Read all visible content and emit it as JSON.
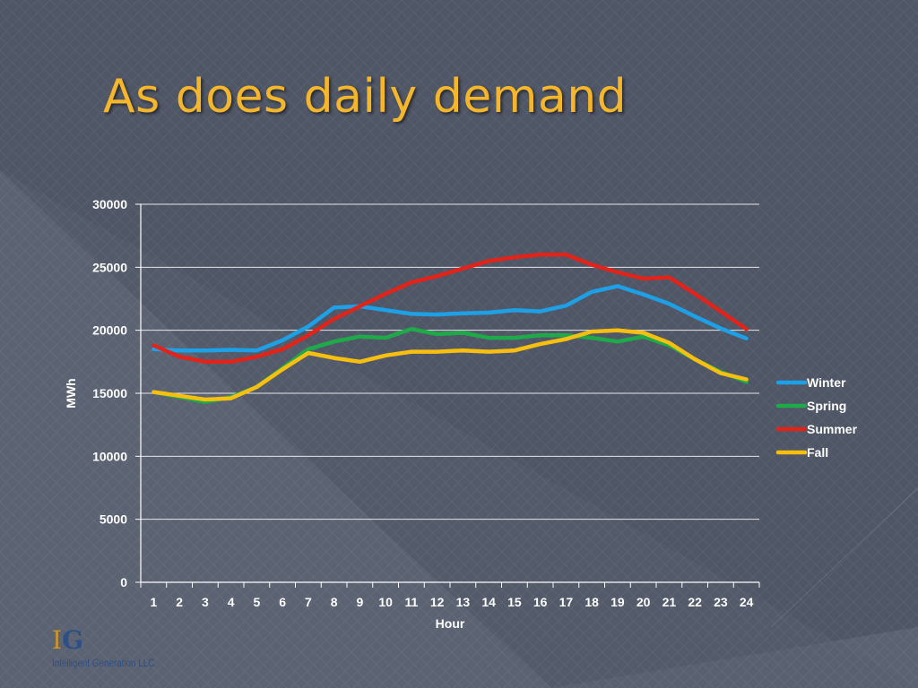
{
  "slide": {
    "title": "As does daily demand",
    "logo": {
      "mark_i": "I",
      "mark_g": "G",
      "company": "Intelligent Generation LLC"
    }
  },
  "colors": {
    "background": "#4f5666",
    "title": "#f5b62c",
    "axis": "#ffffff"
  },
  "chart_data": {
    "type": "line",
    "title": "",
    "xlabel": "Hour",
    "ylabel": "MWh",
    "x": [
      1,
      2,
      3,
      4,
      5,
      6,
      7,
      8,
      9,
      10,
      11,
      12,
      13,
      14,
      15,
      16,
      17,
      18,
      19,
      20,
      21,
      22,
      23,
      24
    ],
    "ylim": [
      0,
      30000
    ],
    "yticks": [
      0,
      5000,
      10000,
      15000,
      20000,
      25000,
      30000
    ],
    "grid": "horizontal",
    "legend": "right",
    "series": [
      {
        "name": "Winter",
        "color": "#1ea0e6",
        "values": [
          18500,
          18400,
          18400,
          18450,
          18400,
          19200,
          20300,
          21800,
          21900,
          21600,
          21300,
          21250,
          21350,
          21400,
          21600,
          21500,
          21950,
          23050,
          23500,
          22850,
          22100,
          21100,
          20150,
          19350
        ]
      },
      {
        "name": "Spring",
        "color": "#1faa4a",
        "values": [
          15100,
          14700,
          14300,
          14700,
          15500,
          17000,
          18500,
          19100,
          19500,
          19400,
          20100,
          19700,
          19800,
          19400,
          19400,
          19600,
          19600,
          19400,
          19100,
          19500,
          18800,
          17700,
          16700,
          15900
        ]
      },
      {
        "name": "Summer",
        "color": "#e2231a",
        "values": [
          18800,
          17900,
          17500,
          17500,
          17900,
          18500,
          19600,
          20900,
          21900,
          22900,
          23800,
          24300,
          24900,
          25500,
          25800,
          26000,
          26000,
          25200,
          24600,
          24100,
          24200,
          22900,
          21500,
          20100
        ]
      },
      {
        "name": "Fall",
        "color": "#f9bf0f",
        "values": [
          15100,
          14800,
          14500,
          14600,
          15500,
          16900,
          18200,
          17800,
          17500,
          18000,
          18300,
          18300,
          18400,
          18300,
          18400,
          18900,
          19300,
          19900,
          20000,
          19800,
          19000,
          17700,
          16600,
          16100
        ]
      }
    ]
  }
}
